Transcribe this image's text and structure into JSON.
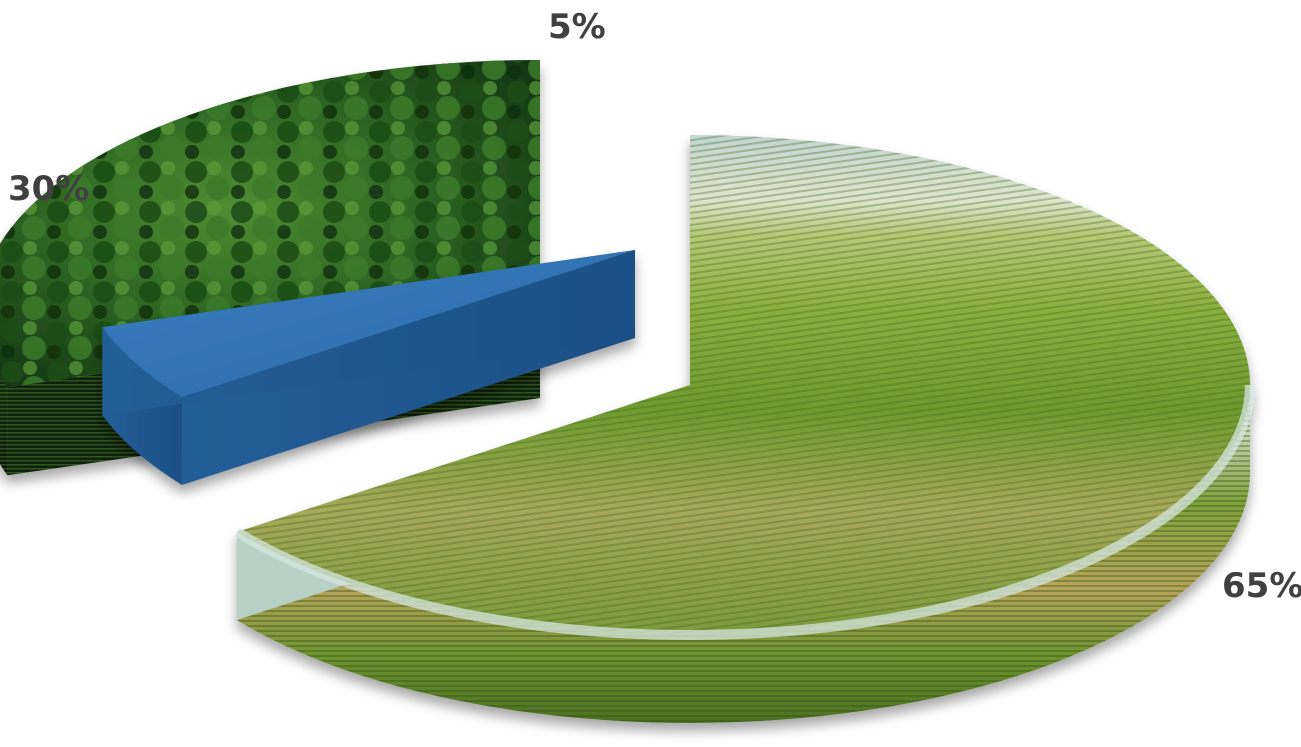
{
  "chart_data": {
    "type": "pie",
    "title": "",
    "slices": [
      {
        "value": 65,
        "label": "65%",
        "color": "#5e8a2c",
        "texture": "farmland-fields"
      },
      {
        "value": 5,
        "label": "5%",
        "color": "#2f6fae",
        "texture": "solid-blue"
      },
      {
        "value": 30,
        "label": "30%",
        "color": "#1f4d18",
        "texture": "forest-canopy"
      }
    ],
    "style": "3d-exploded",
    "legend": "none"
  },
  "colors": {
    "label_text": "#404040",
    "sky_top": "#b8d3d3",
    "sky_bottom": "#dfe8d0",
    "field_light": "#cbbf6e",
    "field_mid": "#8fae3c",
    "field_dark": "#4f7a22",
    "soil": "#8a6a3e",
    "forest_dark": "#0f2e0c",
    "forest_mid": "#2a6322",
    "forest_light": "#5f9c3a",
    "blue_top": "#2f6fae",
    "blue_side": "#1f5590"
  }
}
